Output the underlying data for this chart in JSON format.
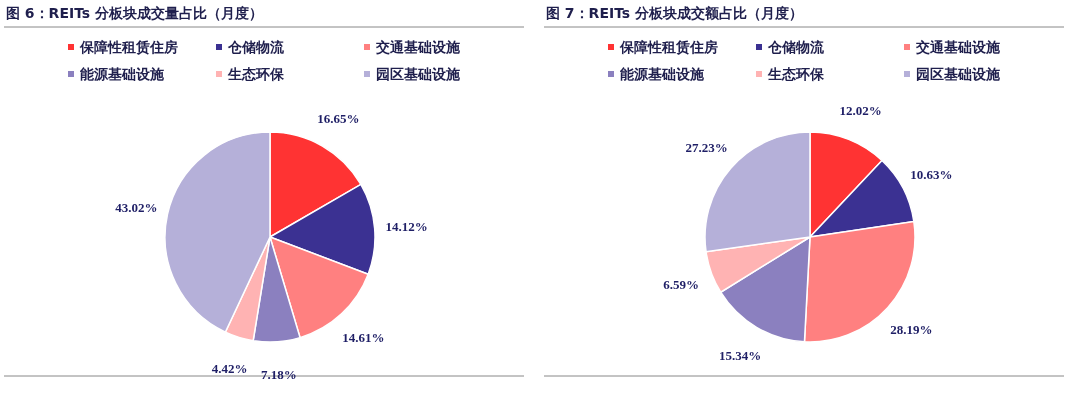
{
  "chart_data": [
    {
      "type": "pie",
      "title": "图 6：REITs 分板块成交量占比（月度）",
      "legend": "top",
      "categories": [
        "保障性租赁住房",
        "仓储物流",
        "交通基础设施",
        "能源基础设施",
        "生态环保",
        "园区基础设施"
      ],
      "values": [
        16.65,
        14.12,
        14.61,
        7.18,
        4.42,
        43.02
      ],
      "colors": [
        "#ff3333",
        "#3b3192",
        "#ff8080",
        "#8b80bf",
        "#ffb3b3",
        "#b5b0d9"
      ],
      "value_labels": [
        "16.65%",
        "14.12%",
        "14.61%",
        "7.18%",
        "4.42%",
        "43.02%"
      ]
    },
    {
      "type": "pie",
      "title": "图 7：REITs 分板块成交额占比（月度）",
      "legend": "top",
      "categories": [
        "保障性租赁住房",
        "仓储物流",
        "交通基础设施",
        "能源基础设施",
        "生态环保",
        "园区基础设施"
      ],
      "values": [
        12.02,
        10.63,
        28.19,
        15.34,
        6.59,
        27.23
      ],
      "colors": [
        "#ff3333",
        "#3b3192",
        "#ff8080",
        "#8b80bf",
        "#ffb3b3",
        "#b5b0d9"
      ],
      "value_labels": [
        "12.02%",
        "10.63%",
        "28.19%",
        "15.34%",
        "6.59%",
        "27.23%"
      ]
    }
  ]
}
